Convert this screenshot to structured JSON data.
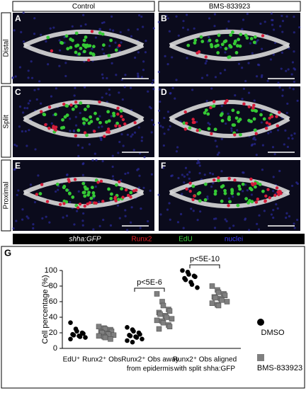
{
  "columns": [
    "Control",
    "BMS-833923"
  ],
  "rows": [
    "Distal",
    "Split",
    "Proximal"
  ],
  "panels": [
    "A",
    "B",
    "C",
    "D",
    "E",
    "F"
  ],
  "channels": [
    {
      "label": "shha:GFP",
      "color": "#ffffff"
    },
    {
      "label": "Runx2",
      "color": "#e8202a"
    },
    {
      "label": "EdU",
      "color": "#3dd43d"
    },
    {
      "label": "nuclei",
      "color": "#3a3aff"
    }
  ],
  "chart_data": {
    "type": "scatter",
    "panel": "G",
    "ylabel": "Cell percentage (%)",
    "categories": [
      [
        "EdU⁺ Runx2⁺ Obs"
      ],
      [
        "Runx2⁺ Obs away",
        "from epidermis"
      ],
      [
        "Runx2⁺ Obs aligned",
        "with split shha:GFP"
      ]
    ],
    "series": [
      {
        "name": "DMSO",
        "color": "#000000",
        "marker": "circle",
        "values": [
          [
            33,
            25,
            22,
            20,
            19,
            18,
            17,
            16,
            15,
            14,
            12
          ],
          [
            27,
            24,
            22,
            20,
            18,
            17,
            16,
            15,
            14,
            12,
            10,
            8
          ],
          [
            100,
            98,
            95,
            93,
            92,
            90,
            88,
            85,
            82,
            78
          ]
        ]
      },
      {
        "name": "BMS-833923",
        "color": "#7f7f7f",
        "marker": "square",
        "values": [
          [
            28,
            26,
            25,
            24,
            22,
            21,
            20,
            19,
            18,
            17,
            16,
            15,
            14,
            12
          ],
          [
            70,
            60,
            55,
            50,
            48,
            46,
            44,
            42,
            40,
            38,
            36,
            35,
            33,
            30,
            28,
            25
          ],
          [
            80,
            75,
            72,
            70,
            68,
            66,
            65,
            64,
            62,
            60,
            58,
            56,
            55
          ]
        ]
      }
    ],
    "annotations": [
      {
        "text": "p<5E-6",
        "category": 1
      },
      {
        "text": "p<5E-10",
        "category": 2
      }
    ],
    "ylim": [
      0,
      100
    ],
    "yticks": [
      0,
      20,
      40,
      60,
      80,
      100
    ]
  }
}
